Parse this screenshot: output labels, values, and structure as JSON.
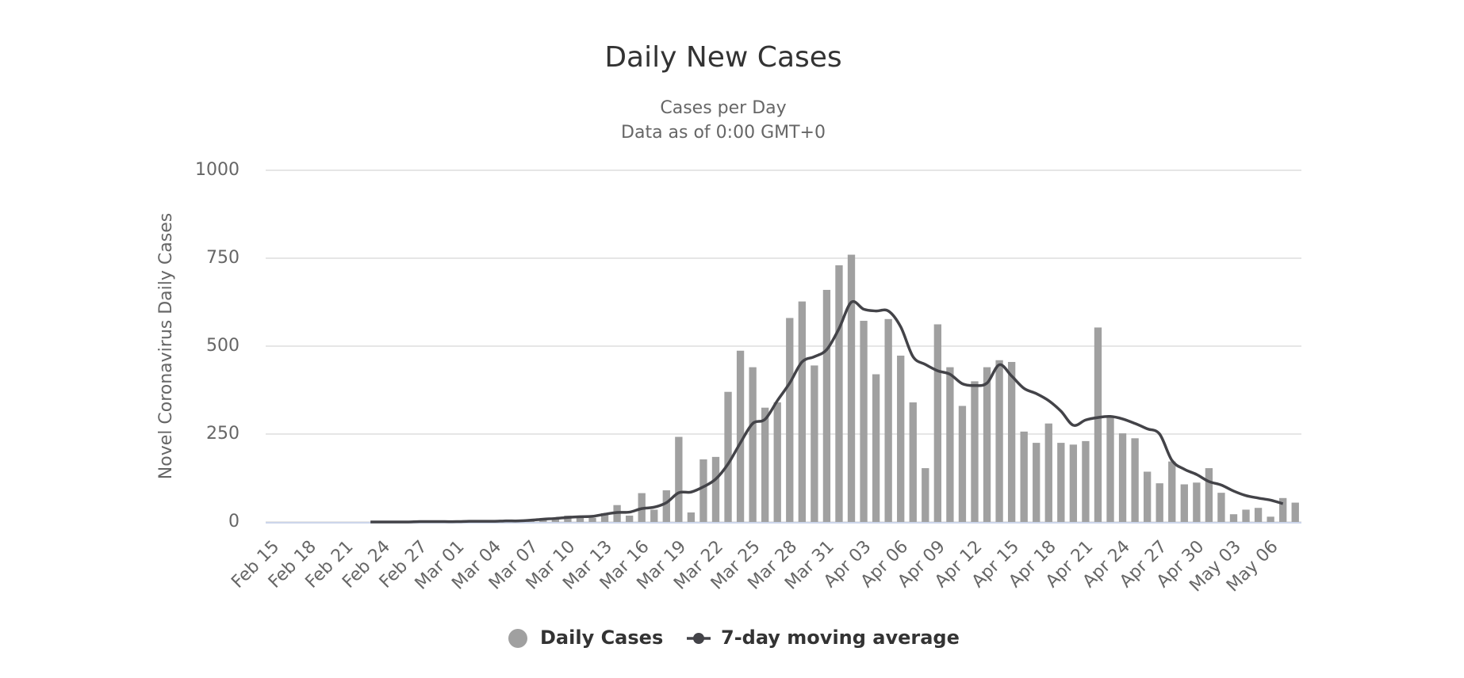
{
  "chart_data": {
    "type": "bar_line",
    "title": "Daily New Cases",
    "subtitle": [
      "Cases per Day",
      "Data as of 0:00 GMT+0"
    ],
    "y_label": "Novel Coronavirus Daily Cases",
    "categories": [
      "Feb 15",
      null,
      null,
      "Feb 18",
      null,
      null,
      "Feb 21",
      null,
      null,
      "Feb 24",
      null,
      null,
      "Feb 27",
      null,
      null,
      "Mar 01",
      null,
      null,
      "Mar 04",
      null,
      null,
      "Mar 07",
      null,
      null,
      "Mar 10",
      null,
      null,
      "Mar 13",
      null,
      null,
      "Mar 16",
      null,
      null,
      "Mar 19",
      null,
      null,
      "Mar 22",
      null,
      null,
      "Mar 25",
      null,
      null,
      "Mar 28",
      null,
      null,
      "Mar 31",
      null,
      null,
      "Apr 03",
      null,
      null,
      "Apr 06",
      null,
      null,
      "Apr 09",
      null,
      null,
      "Apr 12",
      null,
      null,
      "Apr 15",
      null,
      null,
      "Apr 18",
      null,
      null,
      "Apr 21",
      null,
      null,
      "Apr 24",
      null,
      null,
      "Apr 27",
      null,
      null,
      "Apr 30",
      null,
      null,
      "May 03",
      null,
      null,
      "May 06",
      null,
      null
    ],
    "series": [
      {
        "name": "Daily Cases",
        "kind": "bar",
        "color": "#a0a0a0",
        "values": [
          0,
          0,
          0,
          0,
          0,
          0,
          0,
          0,
          0,
          0,
          0,
          0,
          1,
          0,
          1,
          1,
          2,
          2,
          3,
          4,
          3,
          5,
          8,
          10,
          18,
          18,
          12,
          25,
          48,
          18,
          82,
          35,
          90,
          242,
          27,
          178,
          185,
          370,
          487,
          440,
          325,
          340,
          580,
          627,
          445,
          660,
          730,
          760,
          572,
          420,
          577,
          473,
          340,
          153,
          562,
          440,
          330,
          400,
          440,
          460,
          455,
          257,
          225,
          280,
          225,
          220,
          230,
          553,
          300,
          252,
          238,
          143,
          110,
          172,
          107,
          112,
          153,
          83,
          22,
          35,
          40,
          15,
          68,
          55
        ]
      },
      {
        "name": "7-day moving average",
        "kind": "line",
        "color": "#434348",
        "values": [
          null,
          null,
          null,
          null,
          null,
          null,
          null,
          null,
          0,
          0,
          0,
          0,
          1,
          1,
          1,
          1,
          2,
          2,
          2,
          3,
          3,
          5,
          8,
          10,
          13,
          15,
          16,
          22,
          27,
          28,
          38,
          42,
          55,
          83,
          85,
          100,
          122,
          165,
          225,
          280,
          292,
          345,
          395,
          455,
          470,
          490,
          550,
          625,
          605,
          600,
          600,
          555,
          470,
          448,
          430,
          420,
          393,
          388,
          395,
          447,
          415,
          380,
          365,
          345,
          315,
          275,
          290,
          297,
          300,
          293,
          280,
          265,
          250,
          175,
          150,
          135,
          115,
          105,
          88,
          75,
          68,
          62,
          52,
          null
        ]
      }
    ],
    "ylim": [
      0,
      1000
    ],
    "yticks": [
      0,
      250,
      500,
      750,
      1000
    ],
    "grid": true
  }
}
